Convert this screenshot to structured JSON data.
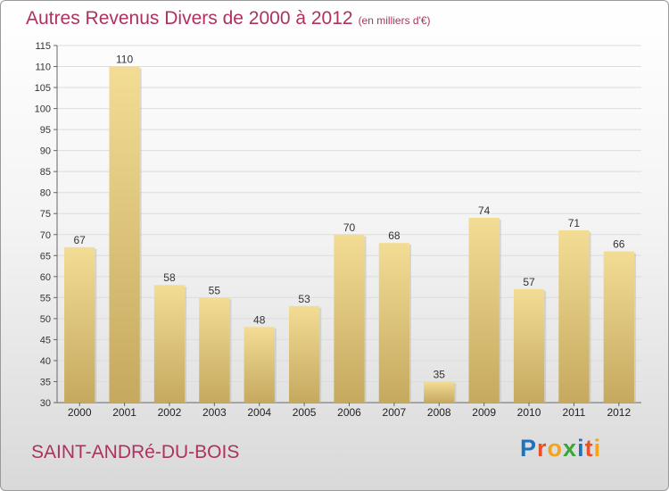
{
  "title": "Autres Revenus Divers de 2000 à 2012",
  "unit_note": "(en milliers d'€)",
  "place_name": "SAINT-ANDRé-DU-BOIS",
  "brand": {
    "letters": [
      "P",
      "r",
      "o",
      "x",
      "i",
      "t",
      "i"
    ],
    "colors": [
      "#1e73be",
      "#e8522b",
      "#f3a41b",
      "#3aa63a",
      "#1e73be",
      "#e8522b",
      "#f3a41b"
    ]
  },
  "chart_data": {
    "type": "bar",
    "categories": [
      "2000",
      "2001",
      "2002",
      "2003",
      "2004",
      "2005",
      "2006",
      "2007",
      "2008",
      "2009",
      "2010",
      "2011",
      "2012"
    ],
    "values": [
      67,
      110,
      58,
      55,
      48,
      53,
      70,
      68,
      35,
      74,
      57,
      71,
      66
    ],
    "ylim": [
      30,
      115
    ],
    "yticks": [
      30,
      35,
      40,
      45,
      50,
      55,
      60,
      65,
      70,
      75,
      80,
      85,
      90,
      95,
      100,
      105,
      110,
      115
    ],
    "grid": true,
    "bar_color_top": "#f3dc94",
    "bar_color_bottom": "#c5a95f"
  }
}
